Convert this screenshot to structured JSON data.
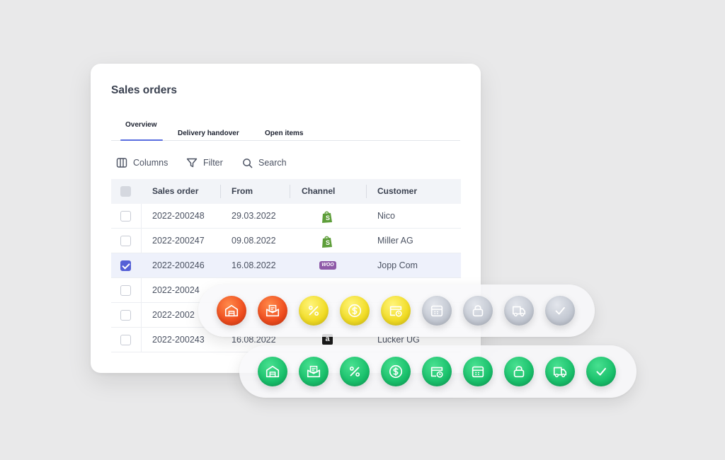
{
  "title": "Sales orders",
  "tabs": [
    {
      "label": "Overview",
      "active": true
    },
    {
      "label": "Delivery handover",
      "active": false
    },
    {
      "label": "Open items",
      "active": false
    }
  ],
  "toolbar": {
    "columns": "Columns",
    "filter": "Filter",
    "search": "Search"
  },
  "table": {
    "headers": [
      "Sales order",
      "From",
      "Channel",
      "Customer"
    ],
    "rows": [
      {
        "order": "2022-200248",
        "from": "29.03.2022",
        "channel": "shopify-icon",
        "customer": "Nico",
        "checked": false
      },
      {
        "order": "2022-200247",
        "from": "09.08.2022",
        "channel": "shopify-icon",
        "customer": "Miller AG",
        "checked": false
      },
      {
        "order": "2022-200246",
        "from": "16.08.2022",
        "channel": "woocommerce-icon",
        "customer": "Jopp Com",
        "checked": true
      },
      {
        "order": "2022-20024",
        "from": "",
        "channel": "",
        "customer": "",
        "checked": false
      },
      {
        "order": "2022-2002",
        "from": "",
        "channel": "",
        "customer": "",
        "checked": false
      },
      {
        "order": "2022-200243",
        "from": "16.08.2022",
        "channel": "amazon-icon",
        "customer": "Lucker UG",
        "checked": false
      }
    ]
  },
  "woo_label": "WOO",
  "amazon_label": "a",
  "status_row_1": [
    {
      "icon": "warehouse-icon",
      "color": "#ef4c1e"
    },
    {
      "icon": "mail-icon",
      "color": "#ef4c1e"
    },
    {
      "icon": "percent-icon",
      "color": "#f1dc25"
    },
    {
      "icon": "dollar-icon",
      "color": "#f1dc25"
    },
    {
      "icon": "calendar-clock-icon",
      "color": "#f1dc25"
    },
    {
      "icon": "calendar-icon",
      "color": "#c3c8d2"
    },
    {
      "icon": "lock-icon",
      "color": "#c3c8d2"
    },
    {
      "icon": "truck-icon",
      "color": "#c3c8d2"
    },
    {
      "icon": "check-icon",
      "color": "#c3c8d2"
    }
  ],
  "status_row_2": [
    {
      "icon": "warehouse-icon",
      "color": "#19c06b"
    },
    {
      "icon": "mail-icon",
      "color": "#19c06b"
    },
    {
      "icon": "percent-icon",
      "color": "#19c06b"
    },
    {
      "icon": "dollar-icon",
      "color": "#19c06b"
    },
    {
      "icon": "calendar-clock-icon",
      "color": "#19c06b"
    },
    {
      "icon": "calendar-icon",
      "color": "#19c06b"
    },
    {
      "icon": "lock-icon",
      "color": "#19c06b"
    },
    {
      "icon": "truck-icon",
      "color": "#19c06b"
    },
    {
      "icon": "check-icon",
      "color": "#19c06b"
    }
  ]
}
